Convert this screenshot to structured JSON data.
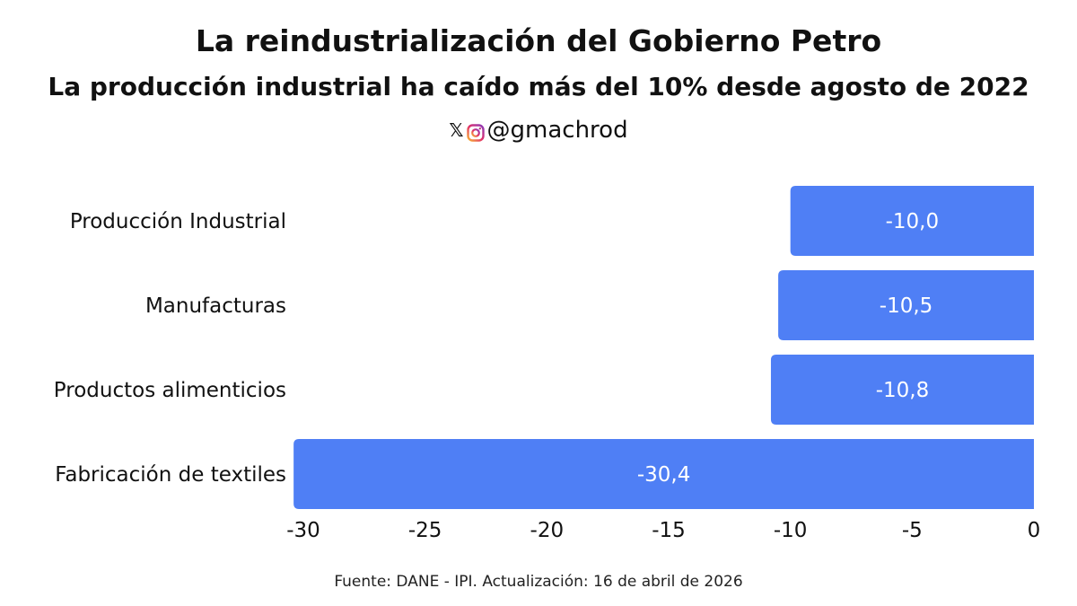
{
  "header": {
    "title": "La reindustrialización del Gobierno Petro",
    "subtitle": "La producción industrial ha caído más del 10% desde agosto de 2022",
    "handle": "@gmachrod",
    "x_icon_glyph": "𝕏"
  },
  "footer": {
    "source": "Fuente: DANE - IPI. Actualización: 16 de abril de 2026"
  },
  "colors": {
    "bar": "#4f7ff5",
    "bar_label": "#ffffff",
    "text": "#111111"
  },
  "chart_data": {
    "type": "bar",
    "orientation": "horizontal",
    "categories": [
      "Producción Industrial",
      "Manufacturas",
      "Productos alimenticios",
      "Fabricación de textiles"
    ],
    "values": [
      -10.0,
      -10.5,
      -10.8,
      -30.4
    ],
    "value_labels": [
      "-10,0",
      "-10,5",
      "-10,8",
      "-30,4"
    ],
    "xlim": [
      -30,
      0
    ],
    "xticks": [
      -30,
      -25,
      -20,
      -15,
      -10,
      -5,
      0
    ],
    "xtick_labels": [
      "-30",
      "-25",
      "-20",
      "-15",
      "-10",
      "-5",
      "0"
    ],
    "grid": false,
    "legend": "none"
  }
}
